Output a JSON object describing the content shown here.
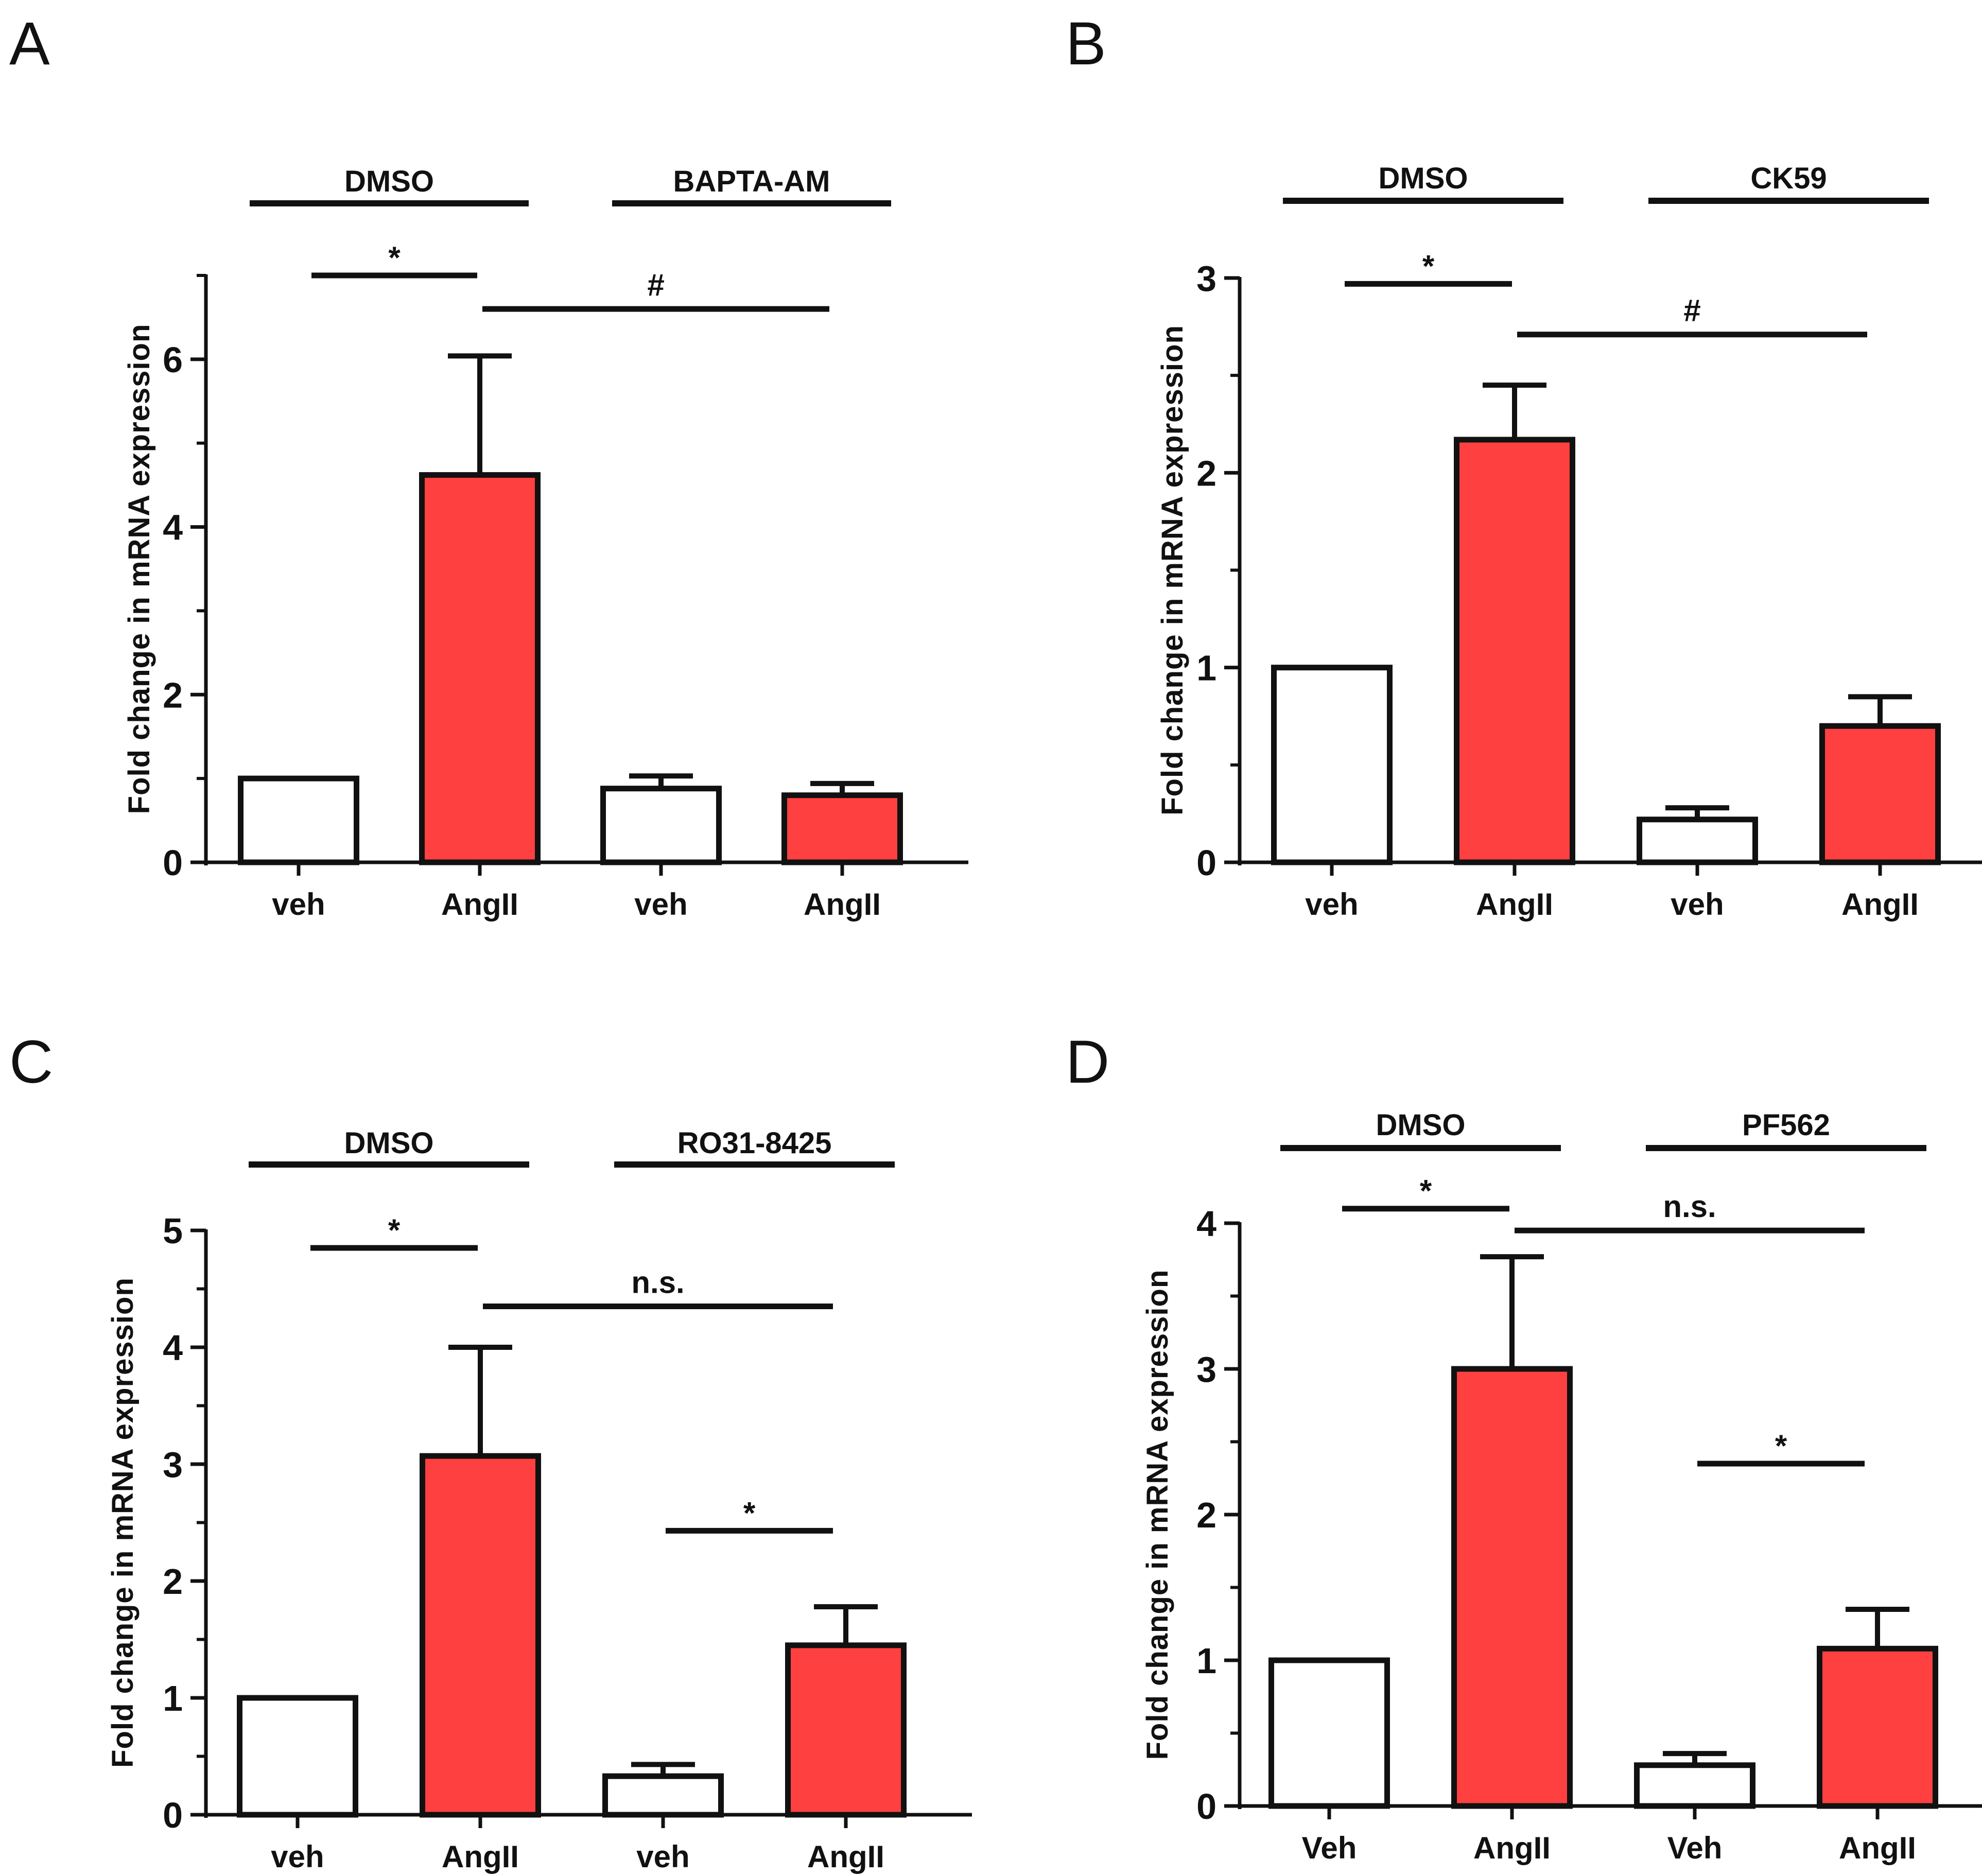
{
  "colors": {
    "vehicle": "#ffffff",
    "angII": "#ff4040",
    "stroke": "#111111"
  },
  "chart_data": [
    {
      "panel": "A",
      "type": "bar",
      "ylabel": "Fold change in mRNA expression",
      "ylim": [
        0,
        7
      ],
      "yticks": [
        0,
        2,
        4,
        6
      ],
      "minor_step": 1,
      "categories": [
        "veh",
        "AngII",
        "veh",
        "AngII"
      ],
      "values": [
        1.0,
        4.62,
        0.88,
        0.8
      ],
      "errors": [
        0,
        1.42,
        0.15,
        0.14
      ],
      "groups": [
        {
          "label": "DMSO",
          "span": [
            0,
            1
          ]
        },
        {
          "label": "BAPTA-AM",
          "span": [
            2,
            3
          ]
        }
      ],
      "significance": [
        {
          "label": "*",
          "from": 0,
          "to": 1,
          "level": 7.0
        },
        {
          "label": "#",
          "from": 1,
          "to": 3,
          "level": 6.6
        }
      ]
    },
    {
      "panel": "B",
      "type": "bar",
      "ylabel": "Fold change in mRNA expression",
      "ylim": [
        0,
        3
      ],
      "yticks": [
        0,
        1,
        2,
        3
      ],
      "minor_step": 0.5,
      "categories": [
        "veh",
        "AngII",
        "veh",
        "AngII"
      ],
      "values": [
        1.0,
        2.17,
        0.22,
        0.7
      ],
      "errors": [
        0,
        0.28,
        0.06,
        0.15
      ],
      "groups": [
        {
          "label": "DMSO",
          "span": [
            0,
            1
          ]
        },
        {
          "label": "CK59",
          "span": [
            2,
            3
          ]
        }
      ],
      "significance": [
        {
          "label": "*",
          "from": 0,
          "to": 1,
          "level": 2.97
        },
        {
          "label": "#",
          "from": 1,
          "to": 3,
          "level": 2.71
        }
      ]
    },
    {
      "panel": "C",
      "type": "bar",
      "ylabel": "Fold change in mRNA expression",
      "ylim": [
        0,
        5
      ],
      "yticks": [
        0,
        1,
        2,
        3,
        4,
        5
      ],
      "minor_step": 0.5,
      "categories": [
        "veh",
        "AngII",
        "veh",
        "AngII"
      ],
      "values": [
        1.0,
        3.07,
        0.33,
        1.45
      ],
      "errors": [
        0,
        0.93,
        0.1,
        0.33
      ],
      "groups": [
        {
          "label": "DMSO",
          "span": [
            0,
            1
          ]
        },
        {
          "label": "RO31-8425",
          "span": [
            2,
            3
          ]
        }
      ],
      "significance": [
        {
          "label": "*",
          "from": 0,
          "to": 1,
          "level": 4.85
        },
        {
          "label": "n.s.",
          "from": 1,
          "to": 3,
          "level": 4.35
        },
        {
          "label": "*",
          "from": 2,
          "to": 3,
          "level": 2.43
        }
      ]
    },
    {
      "panel": "D",
      "type": "bar",
      "ylabel": "Fold change in mRNA expression",
      "ylim": [
        0,
        4
      ],
      "yticks": [
        0,
        1,
        2,
        3,
        4
      ],
      "minor_step": 0.5,
      "categories": [
        "Veh",
        "AngII",
        "Veh",
        "AngII"
      ],
      "values": [
        1.0,
        3.0,
        0.28,
        1.08
      ],
      "errors": [
        0,
        0.77,
        0.08,
        0.27
      ],
      "groups": [
        {
          "label": "DMSO",
          "span": [
            0,
            1
          ]
        },
        {
          "label": "PF562",
          "span": [
            2,
            3
          ]
        }
      ],
      "significance": [
        {
          "label": "*",
          "from": 0,
          "to": 1,
          "level": 4.1
        },
        {
          "label": "n.s.",
          "from": 1,
          "to": 3,
          "level": 3.95
        },
        {
          "label": "*",
          "from": 2,
          "to": 3,
          "level": 2.35
        }
      ]
    }
  ]
}
